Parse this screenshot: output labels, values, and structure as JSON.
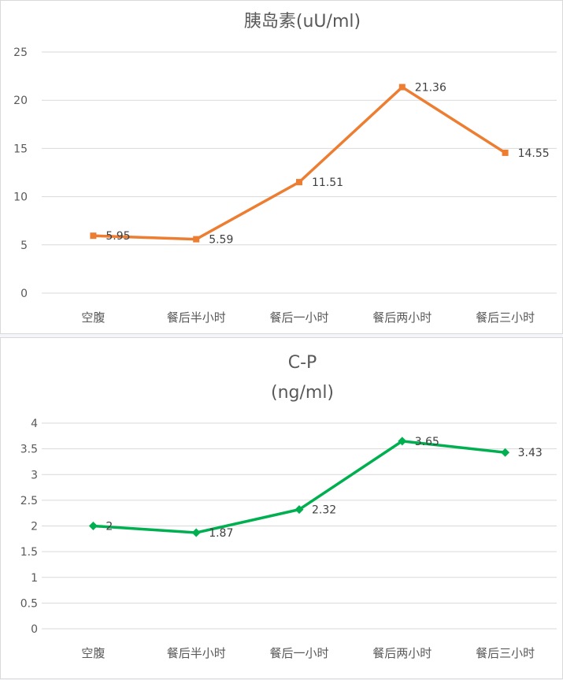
{
  "chart_data": [
    {
      "type": "line",
      "title": "胰岛素(uU/ml)",
      "categories": [
        "空腹",
        "餐后半小时",
        "餐后一小时",
        "餐后两小时",
        "餐后三小时"
      ],
      "series": [
        {
          "values": [
            5.95,
            5.59,
            11.51,
            21.36,
            14.55
          ],
          "labels": [
            "5.95",
            "5.59",
            "11.51",
            "21.36",
            "14.55"
          ],
          "color": "#ED7D31",
          "marker": "square"
        }
      ],
      "ylim": [
        0,
        25
      ],
      "yticks": [
        "0",
        "5",
        "10",
        "15",
        "20",
        "25"
      ],
      "grid": true,
      "xlabel": "",
      "ylabel": ""
    },
    {
      "type": "line",
      "title_lines": [
        "C-P",
        "(ng/ml)"
      ],
      "categories": [
        "空腹",
        "餐后半小时",
        "餐后一小时",
        "餐后两小时",
        "餐后三小时"
      ],
      "series": [
        {
          "values": [
            2,
            1.87,
            2.32,
            3.65,
            3.43
          ],
          "labels": [
            "2",
            "1.87",
            "2.32",
            "3.65",
            "3.43"
          ],
          "color": "#00B050",
          "marker": "diamond"
        }
      ],
      "ylim": [
        0,
        4
      ],
      "yticks": [
        "0",
        "0.5",
        "1",
        "1.5",
        "2",
        "2.5",
        "3",
        "3.5",
        "4"
      ],
      "grid": true,
      "xlabel": "",
      "ylabel": ""
    }
  ]
}
